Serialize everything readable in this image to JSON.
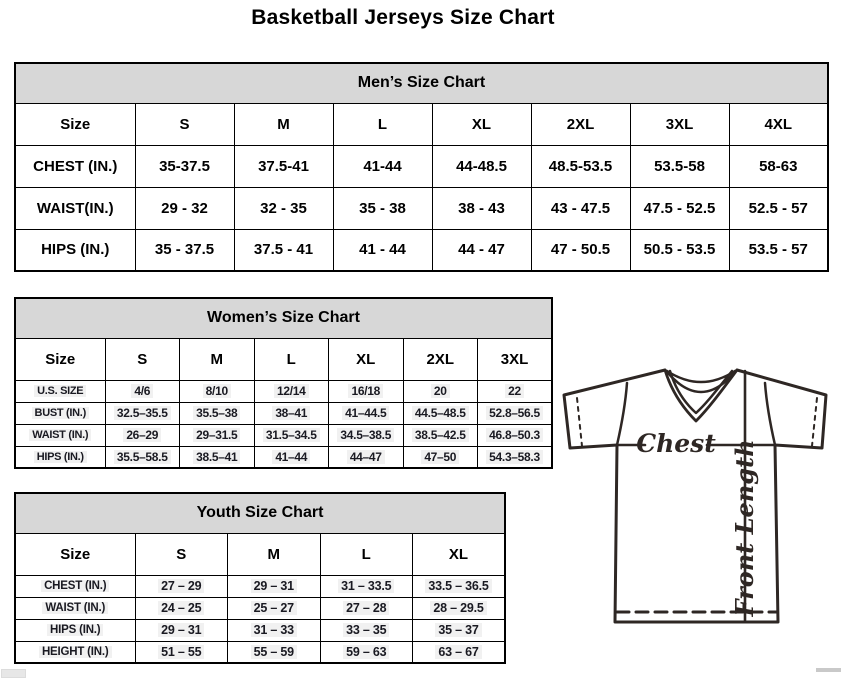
{
  "title": "Basketball Jerseys Size Chart",
  "mens_chart": {
    "title": "Men’s Size Chart",
    "columns": [
      "Size",
      "S",
      "M",
      "L",
      "XL",
      "2XL",
      "3XL",
      "4XL"
    ],
    "rows": [
      {
        "label": "CHEST (IN.)",
        "values": [
          "35-37.5",
          "37.5-41",
          "41-44",
          "44-48.5",
          "48.5-53.5",
          "53.5-58",
          "58-63"
        ]
      },
      {
        "label": "WAIST(IN.)",
        "values": [
          "29 - 32",
          "32 - 35",
          "35 - 38",
          "38 - 43",
          "43 - 47.5",
          "47.5 - 52.5",
          "52.5 - 57"
        ]
      },
      {
        "label": "HIPS (IN.)",
        "values": [
          "35 - 37.5",
          "37.5 - 41",
          "41 - 44",
          "44 - 47",
          "47 - 50.5",
          "50.5 - 53.5",
          "53.5 - 57"
        ]
      }
    ]
  },
  "womens_chart": {
    "title": "Women’s Size Chart",
    "columns": [
      "Size",
      "S",
      "M",
      "L",
      "XL",
      "2XL",
      "3XL"
    ],
    "rows": [
      {
        "label": "U.S. SIZE",
        "values": [
          "4/6",
          "8/10",
          "12/14",
          "16/18",
          "20",
          "22"
        ]
      },
      {
        "label": "BUST (IN.)",
        "values": [
          "32.5–35.5",
          "35.5–38",
          "38–41",
          "41–44.5",
          "44.5–48.5",
          "52.8–56.5"
        ]
      },
      {
        "label": "WAIST (IN.)",
        "values": [
          "26–29",
          "29–31.5",
          "31.5–34.5",
          "34.5–38.5",
          "38.5–42.5",
          "46.8–50.3"
        ]
      },
      {
        "label": "HIPS (IN.)",
        "values": [
          "35.5–58.5",
          "38.5–41",
          "41–44",
          "44–47",
          "47–50",
          "54.3–58.3"
        ]
      }
    ]
  },
  "youth_chart": {
    "title": "Youth Size Chart",
    "columns": [
      "Size",
      "S",
      "M",
      "L",
      "XL"
    ],
    "rows": [
      {
        "label": "CHEST (IN.)",
        "values": [
          "27 – 29",
          "29 – 31",
          "31 – 33.5",
          "33.5 – 36.5"
        ]
      },
      {
        "label": "WAIST (IN.)",
        "values": [
          "24 – 25",
          "25 – 27",
          "27 – 28",
          "28 – 29.5"
        ]
      },
      {
        "label": "HIPS (IN.)",
        "values": [
          "29 – 31",
          "31 – 33",
          "33 – 35",
          "35 – 37"
        ]
      },
      {
        "label": "HEIGHT (IN.)",
        "values": [
          "51 – 55",
          "55 – 59",
          "59 – 63",
          "63 – 67"
        ]
      }
    ]
  },
  "diagram": {
    "chest_label": "Chest",
    "front_length_label": "Front Length"
  },
  "colors": {
    "band_bg": "#d7d7d7",
    "table_border": "#000000",
    "diagram_stroke": "#2e2724",
    "dark_text": "#1a1a22"
  }
}
